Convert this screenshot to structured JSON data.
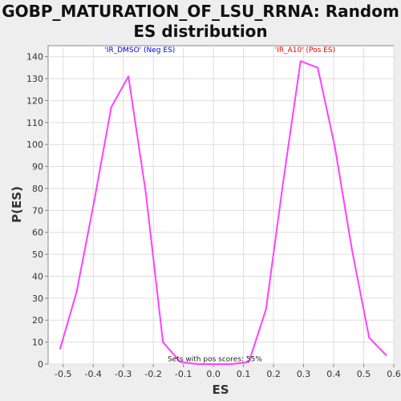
{
  "chart_data": {
    "type": "line",
    "title_lines": [
      "GOBP_MATURATION_OF_LSU_RRNA: Random",
      "ES distribution"
    ],
    "xlabel": "ES",
    "ylabel": "P(ES)",
    "xlim": [
      -0.55,
      0.6
    ],
    "ylim": [
      0,
      145
    ],
    "x_ticks": [
      -0.5,
      -0.4,
      -0.3,
      -0.2,
      -0.1,
      0.0,
      0.1,
      0.2,
      0.3,
      0.4,
      0.5,
      0.6
    ],
    "x_tick_labels": [
      "-0.5",
      "-0.4",
      "-0.3",
      "-0.2",
      "-0.1",
      "0.0",
      "0.1",
      "0.2",
      "0.3",
      "0.4",
      "0.5",
      "0.6"
    ],
    "y_ticks": [
      0,
      10,
      20,
      30,
      40,
      50,
      60,
      70,
      80,
      90,
      100,
      110,
      120,
      130,
      140
    ],
    "y_tick_labels": [
      "0",
      "10",
      "20",
      "30",
      "40",
      "50",
      "60",
      "70",
      "80",
      "90",
      "100",
      "110",
      "120",
      "130",
      "140"
    ],
    "grid": true,
    "series": [
      {
        "color": "#ff40ff",
        "x": [
          -0.51,
          -0.455,
          -0.397,
          -0.34,
          -0.283,
          -0.225,
          -0.168,
          -0.11,
          -0.053,
          0.004,
          0.061,
          0.118,
          0.175,
          0.232,
          0.29,
          0.347,
          0.404,
          0.461,
          0.518,
          0.575
        ],
        "y": [
          7,
          33,
          74,
          117,
          131,
          78,
          10,
          1,
          0,
          0,
          0,
          1,
          25,
          83,
          138,
          135,
          99,
          52,
          12,
          4
        ]
      }
    ],
    "annotations": [
      {
        "text": "'IR_DMSO' (Neg ES)",
        "color": "#0000ee",
        "x": -0.245,
        "y": 142
      },
      {
        "text": "'IR_A10' (Pos ES)",
        "color": "#ee0000",
        "x": 0.305,
        "y": 142
      },
      {
        "text": "Sets with pos scores: 55%",
        "color": "#222222",
        "x": 0.005,
        "y": 1.2
      }
    ]
  }
}
